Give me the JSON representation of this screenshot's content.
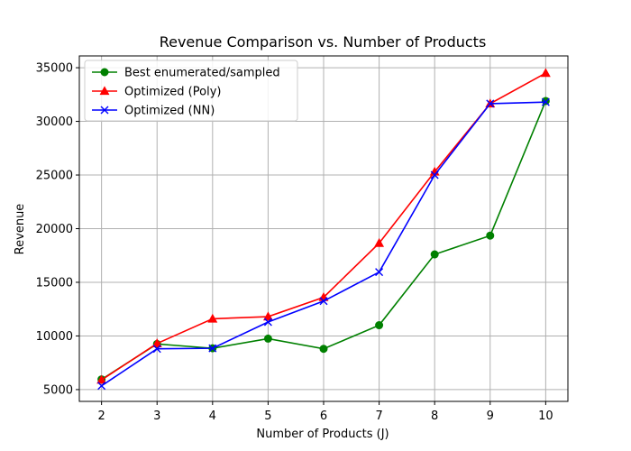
{
  "chart_data": {
    "type": "line",
    "title": "Revenue Comparison vs. Number of Products",
    "xlabel": "Number of Products (J)",
    "ylabel": "Revenue",
    "x": [
      2,
      3,
      4,
      5,
      6,
      7,
      8,
      9,
      10
    ],
    "xlim": [
      1.6,
      10.4
    ],
    "ylim": [
      3900,
      36100
    ],
    "xticks": [
      "2",
      "3",
      "4",
      "5",
      "6",
      "7",
      "8",
      "9",
      "10"
    ],
    "yticks": [
      5000,
      10000,
      15000,
      20000,
      25000,
      30000,
      35000
    ],
    "ytick_labels": [
      "5000",
      "10000",
      "15000",
      "20000",
      "25000",
      "30000",
      "35000"
    ],
    "grid": true,
    "legend_position": "top-left",
    "series": [
      {
        "name": "Best enumerated/sampled",
        "color": "#008000",
        "marker": "circle",
        "values": [
          5950,
          9250,
          8850,
          9750,
          8800,
          11000,
          17600,
          19350,
          31900
        ]
      },
      {
        "name": "Optimized (Poly)",
        "color": "#ff0000",
        "marker": "triangle",
        "values": [
          5900,
          9300,
          11600,
          11800,
          13600,
          18650,
          25300,
          31650,
          34500
        ]
      },
      {
        "name": "Optimized (NN)",
        "color": "#0000ff",
        "marker": "x",
        "values": [
          5350,
          8800,
          8850,
          11300,
          13250,
          15950,
          25000,
          31650,
          31800
        ]
      }
    ]
  }
}
